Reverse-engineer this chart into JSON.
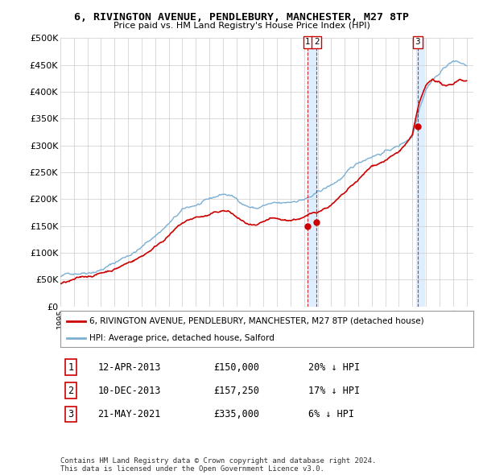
{
  "title": "6, RIVINGTON AVENUE, PENDLEBURY, MANCHESTER, M27 8TP",
  "subtitle": "Price paid vs. HM Land Registry's House Price Index (HPI)",
  "ylabel_ticks": [
    "£0",
    "£50K",
    "£100K",
    "£150K",
    "£200K",
    "£250K",
    "£300K",
    "£350K",
    "£400K",
    "£450K",
    "£500K"
  ],
  "ytick_values": [
    0,
    50000,
    100000,
    150000,
    200000,
    250000,
    300000,
    350000,
    400000,
    450000,
    500000
  ],
  "xlim_start": 1995.0,
  "xlim_end": 2025.5,
  "ylim": [
    0,
    500000
  ],
  "legend_property": "6, RIVINGTON AVENUE, PENDLEBURY, MANCHESTER, M27 8TP (detached house)",
  "legend_hpi": "HPI: Average price, detached house, Salford",
  "property_color": "#cc0000",
  "hpi_color": "#7bafd4",
  "shade_color": "#ddeeff",
  "sale_dates": [
    2013.28,
    2013.93,
    2021.38
  ],
  "sale_prices": [
    150000,
    157250,
    335000
  ],
  "sale_labels": [
    "1",
    "2",
    "3"
  ],
  "table_rows": [
    [
      "1",
      "12-APR-2013",
      "£150,000",
      "20% ↓ HPI"
    ],
    [
      "2",
      "10-DEC-2013",
      "£157,250",
      "17% ↓ HPI"
    ],
    [
      "3",
      "21-MAY-2021",
      "£335,000",
      "6% ↓ HPI"
    ]
  ],
  "footer": "Contains HM Land Registry data © Crown copyright and database right 2024.\nThis data is licensed under the Open Government Licence v3.0.",
  "background_color": "#ffffff",
  "grid_color": "#cccccc"
}
